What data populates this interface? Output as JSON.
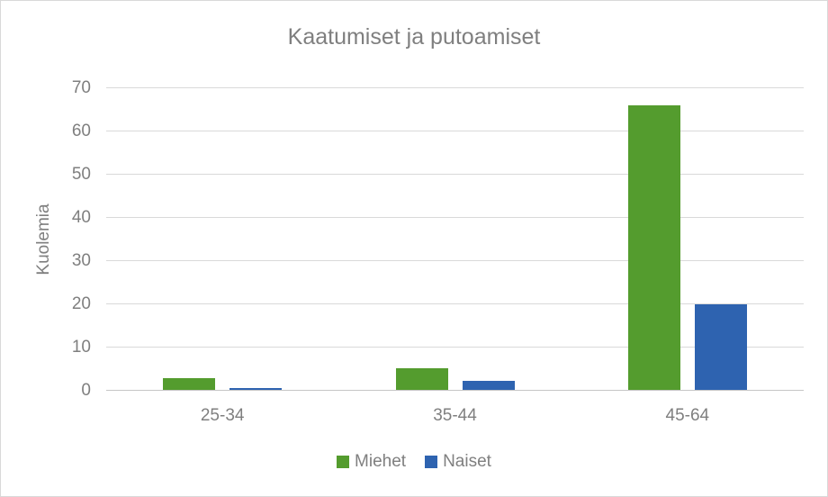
{
  "chart_data": {
    "type": "bar",
    "title": "Kaatumiset ja putoamiset",
    "ylabel": "Kuolemia",
    "xlabel": "",
    "categories": [
      "25-34",
      "35-44",
      "45-64"
    ],
    "series": [
      {
        "name": "Miehet",
        "color": "#549C2E",
        "values": [
          3,
          5.3,
          66
        ]
      },
      {
        "name": "Naiset",
        "color": "#2E63B0",
        "values": [
          0.6,
          2.2,
          20
        ]
      }
    ],
    "ylim": [
      0,
      70
    ],
    "ytick_step": 10,
    "ytick_labels": [
      "0",
      "10",
      "20",
      "30",
      "40",
      "50",
      "60",
      "70"
    ],
    "grid": true,
    "legend_position": "bottom"
  },
  "colors": {
    "background": "#FFFFFF",
    "canvas_border": "#D9D9D9",
    "gridline": "#D9D9D9",
    "axis_line": "#C6C6C6",
    "title_text": "#7F7F7F",
    "axis_text": "#7F7F7F"
  }
}
